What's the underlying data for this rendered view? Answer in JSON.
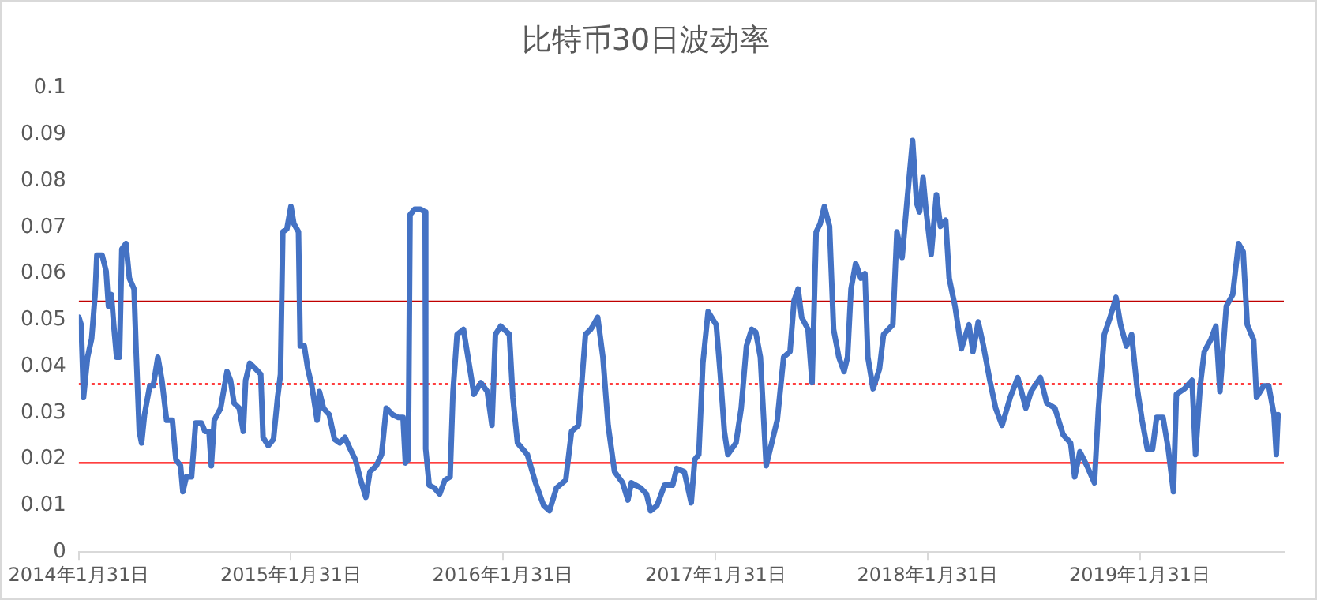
{
  "chart_data": {
    "type": "line",
    "title": "比特币30日波动率",
    "x": [
      "2014-01-31",
      "2014-02-04",
      "2014-02-08",
      "2014-02-15",
      "2014-02-22",
      "2014-02-28",
      "2014-03-03",
      "2014-03-12",
      "2014-03-19",
      "2014-03-23",
      "2014-03-28",
      "2014-04-01",
      "2014-04-06",
      "2014-04-11",
      "2014-04-15",
      "2014-04-22",
      "2014-04-28",
      "2014-05-06",
      "2014-05-10",
      "2014-05-15",
      "2014-05-19",
      "2014-05-24",
      "2014-06-02",
      "2014-06-08",
      "2014-06-16",
      "2014-06-23",
      "2014-07-01",
      "2014-07-11",
      "2014-07-17",
      "2014-07-25",
      "2014-07-29",
      "2014-08-04",
      "2014-08-13",
      "2014-08-20",
      "2014-08-30",
      "2014-09-05",
      "2014-09-12",
      "2014-09-16",
      "2014-09-21",
      "2014-10-02",
      "2014-10-13",
      "2014-10-19",
      "2014-10-25",
      "2014-11-03",
      "2014-11-10",
      "2014-11-14",
      "2014-11-21",
      "2014-12-01",
      "2014-12-10",
      "2014-12-14",
      "2014-12-23",
      "2015-01-01",
      "2015-01-08",
      "2015-01-13",
      "2015-01-17",
      "2015-01-24",
      "2015-01-31",
      "2015-02-05",
      "2015-02-13",
      "2015-02-16",
      "2015-02-23",
      "2015-03-01",
      "2015-03-08",
      "2015-03-17",
      "2015-03-21",
      "2015-03-28",
      "2015-04-07",
      "2015-04-16",
      "2015-04-25",
      "2015-05-04",
      "2015-05-13",
      "2015-05-22",
      "2015-05-31",
      "2015-06-09",
      "2015-06-16",
      "2015-06-27",
      "2015-07-06",
      "2015-07-14",
      "2015-07-25",
      "2015-08-04",
      "2015-08-12",
      "2015-08-16",
      "2015-08-21",
      "2015-08-24",
      "2015-09-01",
      "2015-09-11",
      "2015-09-19",
      "2015-09-20",
      "2015-09-26",
      "2015-10-05",
      "2015-10-14",
      "2015-10-23",
      "2015-11-01",
      "2015-11-06",
      "2015-11-13",
      "2015-11-24",
      "2015-12-05",
      "2015-12-12",
      "2015-12-24",
      "2016-01-04",
      "2016-01-12",
      "2016-01-18",
      "2016-01-27",
      "2016-02-11",
      "2016-02-17",
      "2016-02-25",
      "2016-03-13",
      "2016-03-27",
      "2016-04-10",
      "2016-04-20",
      "2016-05-02",
      "2016-05-18",
      "2016-05-28",
      "2016-06-09",
      "2016-06-21",
      "2016-06-30",
      "2016-07-05",
      "2016-07-12",
      "2016-07-21",
      "2016-07-30",
      "2016-08-10",
      "2016-08-24",
      "2016-09-02",
      "2016-09-08",
      "2016-09-24",
      "2016-10-04",
      "2016-10-11",
      "2016-10-22",
      "2016-11-04",
      "2016-11-18",
      "2016-11-25",
      "2016-12-08",
      "2016-12-20",
      "2016-12-26",
      "2017-01-02",
      "2017-01-09",
      "2017-01-18",
      "2017-02-01",
      "2017-02-08",
      "2017-02-15",
      "2017-02-21",
      "2017-03-07",
      "2017-03-16",
      "2017-03-25",
      "2017-04-03",
      "2017-04-10",
      "2017-04-18",
      "2017-04-28",
      "2017-05-05",
      "2017-05-17",
      "2017-05-28",
      "2017-06-08",
      "2017-06-15",
      "2017-06-22",
      "2017-06-28",
      "2017-07-09",
      "2017-07-16",
      "2017-07-23",
      "2017-07-30",
      "2017-08-06",
      "2017-08-15",
      "2017-08-22",
      "2017-08-31",
      "2017-09-09",
      "2017-09-15",
      "2017-09-21",
      "2017-09-29",
      "2017-10-08",
      "2017-10-15",
      "2017-10-20",
      "2017-10-29",
      "2017-11-09",
      "2017-11-16",
      "2017-12-02",
      "2017-12-09",
      "2017-12-18",
      "2017-12-27",
      "2018-01-05",
      "2018-01-12",
      "2018-01-17",
      "2018-01-23",
      "2018-01-28",
      "2018-02-06",
      "2018-02-15",
      "2018-02-22",
      "2018-03-03",
      "2018-03-09",
      "2018-03-19",
      "2018-03-30",
      "2018-04-12",
      "2018-04-19",
      "2018-04-28",
      "2018-05-07",
      "2018-05-18",
      "2018-05-28",
      "2018-06-08",
      "2018-06-22",
      "2018-07-05",
      "2018-07-19",
      "2018-07-28",
      "2018-08-13",
      "2018-08-24",
      "2018-09-07",
      "2018-09-21",
      "2018-10-04",
      "2018-10-11",
      "2018-10-20",
      "2018-11-01",
      "2018-11-14",
      "2018-11-21",
      "2018-12-01",
      "2018-12-11",
      "2018-12-21",
      "2018-12-29",
      "2019-01-08",
      "2019-01-17",
      "2019-01-26",
      "2019-02-04",
      "2019-02-13",
      "2019-02-22",
      "2019-03-01",
      "2019-03-12",
      "2019-03-21",
      "2019-03-30",
      "2019-04-04",
      "2019-04-18",
      "2019-05-01",
      "2019-05-07",
      "2019-05-15",
      "2019-05-22",
      "2019-06-02",
      "2019-06-11",
      "2019-06-18",
      "2019-06-29",
      "2019-07-10",
      "2019-07-20",
      "2019-07-28",
      "2019-08-04",
      "2019-08-15",
      "2019-08-20",
      "2019-09-01",
      "2019-09-10",
      "2019-09-19",
      "2019-09-23",
      "2019-09-26"
    ],
    "series": [
      {
        "color": "#4472c4",
        "values": [
          0.0506,
          0.049,
          0.0333,
          0.042,
          0.046,
          0.0555,
          0.064,
          0.064,
          0.0605,
          0.053,
          0.0555,
          0.049,
          0.042,
          0.042,
          0.0653,
          0.0665,
          0.059,
          0.0567,
          0.042,
          0.026,
          0.0235,
          0.0296,
          0.0358,
          0.0358,
          0.042,
          0.037,
          0.0284,
          0.0284,
          0.0199,
          0.0186,
          0.013,
          0.0162,
          0.0162,
          0.0278,
          0.0278,
          0.026,
          0.026,
          0.0186,
          0.0284,
          0.031,
          0.0389,
          0.037,
          0.0321,
          0.031,
          0.026,
          0.037,
          0.0407,
          0.0395,
          0.0383,
          0.0247,
          0.0229,
          0.0243,
          0.0333,
          0.0383,
          0.069,
          0.0696,
          0.0745,
          0.0708,
          0.069,
          0.0444,
          0.0444,
          0.0395,
          0.0358,
          0.0284,
          0.0346,
          0.031,
          0.0296,
          0.0243,
          0.0235,
          0.0247,
          0.0222,
          0.0199,
          0.0155,
          0.0118,
          0.0173,
          0.0186,
          0.021,
          0.031,
          0.0296,
          0.029,
          0.029,
          0.0192,
          0.0199,
          0.0727,
          0.0739,
          0.0739,
          0.0733,
          0.0222,
          0.0144,
          0.0138,
          0.0125,
          0.0155,
          0.0162,
          0.0346,
          0.0469,
          0.048,
          0.0395,
          0.034,
          0.0365,
          0.0346,
          0.0273,
          0.0469,
          0.0487,
          0.0469,
          0.0333,
          0.0235,
          0.021,
          0.0149,
          0.01,
          0.0089,
          0.0138,
          0.0155,
          0.026,
          0.0273,
          0.0469,
          0.048,
          0.049,
          0.0506,
          0.042,
          0.0273,
          0.0173,
          0.0149,
          0.0112,
          0.0149,
          0.0138,
          0.0125,
          0.0089,
          0.01,
          0.0144,
          0.0144,
          0.018,
          0.0173,
          0.0106,
          0.0199,
          0.021,
          0.0407,
          0.0518,
          0.049,
          0.0383,
          0.026,
          0.021,
          0.0235,
          0.031,
          0.0444,
          0.048,
          0.0474,
          0.042,
          0.0186,
          0.0222,
          0.0284,
          0.042,
          0.0432,
          0.0542,
          0.0567,
          0.0506,
          0.048,
          0.0365,
          0.069,
          0.0708,
          0.0745,
          0.0702,
          0.048,
          0.042,
          0.0389,
          0.042,
          0.0567,
          0.0622,
          0.059,
          0.06,
          0.042,
          0.0352,
          0.0395,
          0.0469,
          0.049,
          0.069,
          0.0635,
          0.0764,
          0.0887,
          0.0752,
          0.0733,
          0.0807,
          0.0739,
          0.0641,
          0.077,
          0.0702,
          0.0715,
          0.059,
          0.053,
          0.0438,
          0.049,
          0.0432,
          0.0496,
          0.0444,
          0.037,
          0.031,
          0.0273,
          0.0333,
          0.0376,
          0.031,
          0.0346,
          0.0376,
          0.0321,
          0.031,
          0.0253,
          0.0235,
          0.0162,
          0.0216,
          0.0186,
          0.0149,
          0.031,
          0.0469,
          0.0506,
          0.0549,
          0.049,
          0.0444,
          0.0469,
          0.0358,
          0.0284,
          0.0222,
          0.0222,
          0.029,
          0.029,
          0.0222,
          0.013,
          0.034,
          0.0352,
          0.037,
          0.021,
          0.0358,
          0.0432,
          0.0457,
          0.0487,
          0.0346,
          0.053,
          0.0555,
          0.0665,
          0.0647,
          0.049,
          0.0457,
          0.0333,
          0.0358,
          0.0358,
          0.0296,
          0.021,
          0.0296
        ]
      }
    ],
    "xlim": [
      "2014-01-31",
      "2019-10-06"
    ],
    "xticks": [
      {
        "value": "2014-01-31",
        "label": "2014年1月31日"
      },
      {
        "value": "2015-01-31",
        "label": "2015年1月31日"
      },
      {
        "value": "2016-01-31",
        "label": "2016年1月31日"
      },
      {
        "value": "2017-01-31",
        "label": "2017年1月31日"
      },
      {
        "value": "2018-01-31",
        "label": "2018年1月31日"
      },
      {
        "value": "2019-01-31",
        "label": "2019年1月31日"
      }
    ],
    "ylim": [
      0,
      0.1
    ],
    "yticks": [
      0,
      0.01,
      0.02,
      0.03,
      0.04,
      0.05,
      0.06,
      0.07,
      0.08,
      0.09,
      0.1
    ],
    "grid": false,
    "marker": "none",
    "line_style": "solid",
    "ref_lines": [
      {
        "axis": "y",
        "value": 0.054,
        "color": "#c00000",
        "line_style": "solid"
      },
      {
        "axis": "y",
        "value": 0.0362,
        "color": "#ff0000",
        "line_style": "dotted"
      },
      {
        "axis": "y",
        "value": 0.0192,
        "color": "#ff0000",
        "line_style": "solid"
      }
    ]
  }
}
